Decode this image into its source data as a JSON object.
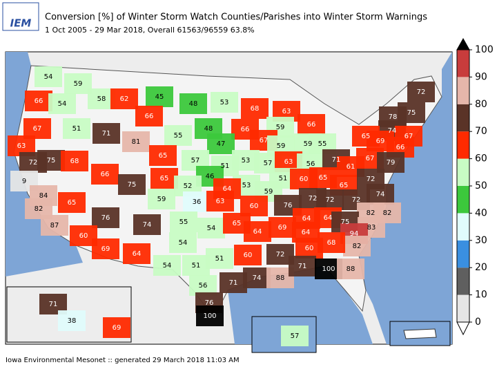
{
  "header": {
    "logo": "IEM",
    "title": "Conversion [%] of Winter Storm Watch Counties/Parishes into Winter Storm Warnings",
    "subtitle": "1 Oct 2005 - 29 Mar 2018, Overall 61563/96559 63.8%"
  },
  "colorbar": {
    "ticks": [
      0,
      10,
      20,
      30,
      40,
      50,
      60,
      70,
      80,
      90,
      100
    ],
    "colors": [
      "#e6e6e6",
      "#5f5f5f",
      "#3a8fe0",
      "#e0fcfc",
      "#3cc83c",
      "#c8fcc4",
      "#ff2a00",
      "#5a3327",
      "#e6b6aa",
      "#c83c3c"
    ],
    "under_color": "#ffffff",
    "over_color": "#000000"
  },
  "map": {
    "labels": [
      54,
      59,
      66,
      54,
      58,
      62,
      45,
      48,
      53,
      66,
      68,
      63,
      67,
      51,
      71,
      81,
      55,
      48,
      66,
      59,
      66,
      72,
      78,
      75,
      74,
      67,
      47,
      67,
      59,
      59,
      55,
      65,
      69,
      66,
      63,
      72,
      75,
      68,
      65,
      57,
      51,
      53,
      57,
      63,
      56,
      71,
      61,
      67,
      79,
      66,
      75,
      65,
      46,
      52,
      53,
      51,
      60,
      65,
      65,
      72,
      9,
      84,
      64,
      59,
      74,
      59,
      36,
      63,
      60,
      76,
      72,
      72,
      72,
      82,
      65,
      82,
      82,
      76,
      74,
      55,
      54,
      65,
      64,
      69,
      64,
      64,
      75,
      83,
      94,
      87,
      60,
      54,
      64,
      82,
      69,
      64,
      60,
      51,
      72,
      60,
      68,
      54,
      51,
      71,
      74,
      88,
      71,
      100,
      88,
      56,
      76,
      100,
      71,
      38,
      69,
      57
    ]
  },
  "footer": "Iowa Environmental Mesonet :: generated 29 March 2018 11:03 AM"
}
